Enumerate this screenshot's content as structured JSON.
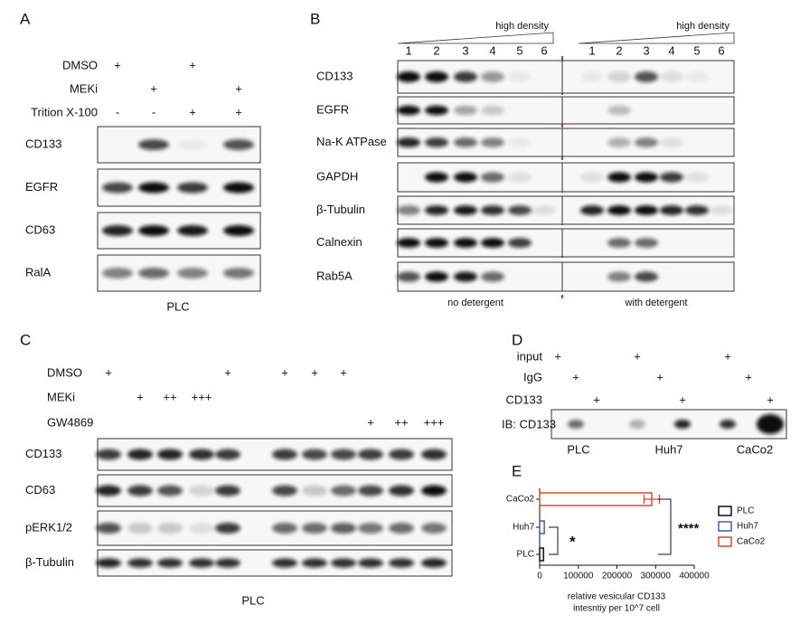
{
  "panel_a": {
    "label": "A",
    "rows": [
      {
        "name": "DMSO",
        "marks": [
          "+",
          null,
          "+",
          null
        ]
      },
      {
        "name": "MEKi",
        "marks": [
          null,
          "+",
          null,
          "+"
        ]
      },
      {
        "name": "Trition X-100",
        "marks": [
          "-",
          "-",
          "+",
          "+"
        ]
      }
    ],
    "blots": [
      "CD133",
      "EGFR",
      "CD63",
      "RalA"
    ],
    "caption": "PLC"
  },
  "panel_b": {
    "label": "B",
    "groups": [
      {
        "header": "high density",
        "lanes": [
          1,
          2,
          3,
          4,
          5,
          6
        ],
        "caption": "no detergent"
      },
      {
        "header": "high density",
        "lanes": [
          1,
          2,
          3,
          4,
          5,
          6
        ],
        "caption": "with detergent"
      }
    ],
    "blots": [
      "CD133",
      "EGFR",
      "Na-K ATPase",
      "GAPDH",
      "β-Tubulin",
      "Calnexin",
      "Rab5A"
    ]
  },
  "panel_c": {
    "label": "C",
    "rows": [
      {
        "name": "DMSO",
        "marks": [
          "+",
          null,
          null,
          null,
          "+",
          "+",
          "+",
          "+",
          null,
          null,
          null
        ]
      },
      {
        "name": "MEKi",
        "marks": [
          null,
          "+",
          "++",
          "+++",
          null,
          null,
          null,
          null,
          null,
          null,
          null
        ]
      },
      {
        "name": "GW4869",
        "marks": [
          null,
          null,
          null,
          null,
          null,
          null,
          null,
          null,
          "+",
          "++",
          "+++"
        ]
      }
    ],
    "blots": [
      "CD133",
      "CD63",
      "pERK1/2",
      "β-Tubulin"
    ],
    "caption": "PLC"
  },
  "panel_d": {
    "label": "D",
    "rows": [
      {
        "name": "input",
        "marks": [
          "+",
          null,
          null,
          "+",
          null,
          null,
          "+",
          null,
          null
        ]
      },
      {
        "name": "IgG",
        "marks": [
          null,
          "+",
          null,
          null,
          "+",
          null,
          null,
          "+",
          null
        ]
      },
      {
        "name": "CD133",
        "marks": [
          null,
          null,
          "+",
          null,
          null,
          "+",
          null,
          null,
          "+"
        ]
      }
    ],
    "blot": "IB: CD133",
    "cells": [
      "PLC",
      "Huh7",
      "CaCo2"
    ]
  },
  "chart_data": {
    "type": "bar",
    "label": "E",
    "orientation": "horizontal",
    "categories": [
      "CaCo2",
      "Huh7",
      "PLC"
    ],
    "values": [
      290000,
      12000,
      10000
    ],
    "errors": [
      20000,
      null,
      null
    ],
    "colors": [
      "#e4472e",
      "#3a62b4",
      "#111111"
    ],
    "xlim": [
      0,
      400000
    ],
    "xticks": [
      0,
      100000,
      200000,
      300000,
      400000
    ],
    "xlabel": [
      "relative vesicular CD133",
      "intesntiy per 10^7 cell"
    ],
    "legend": [
      "PLC",
      "Huh7",
      "CaCo2"
    ],
    "legend_colors": [
      "#111111",
      "#3a62b4",
      "#e4472e"
    ],
    "annotations": [
      "*",
      "****"
    ]
  }
}
